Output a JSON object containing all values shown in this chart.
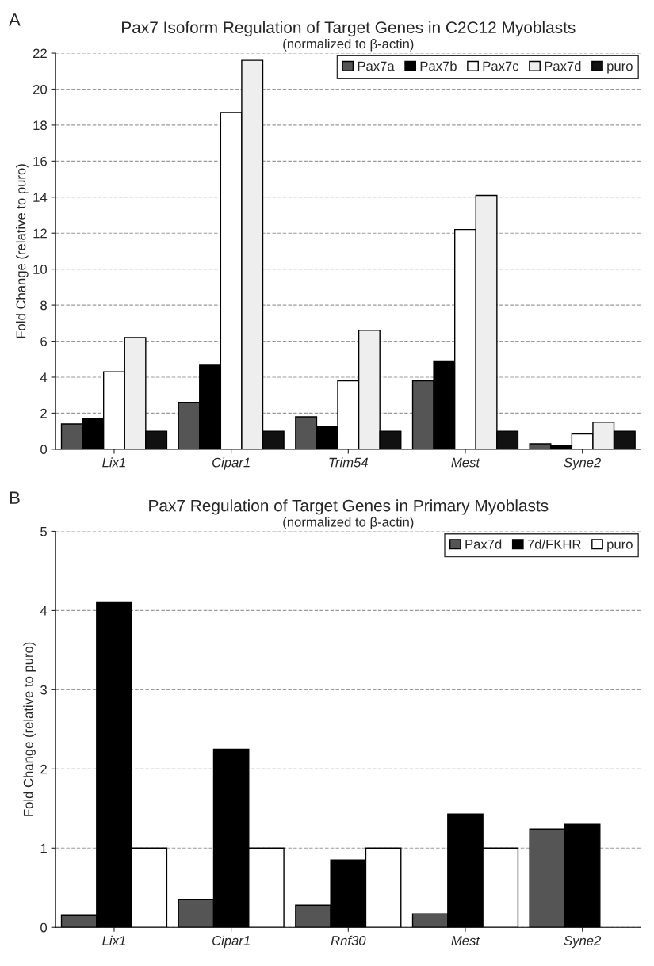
{
  "chart_data": [
    {
      "type": "bar",
      "title": "Pax7 Isoform Regulation of Target Genes in C2C12 Myoblasts",
      "subtitle": "(normalized to β-actin)",
      "ylabel": "Fold Change (relative to puro)",
      "annotations": [
        "A"
      ],
      "categories": [
        "Lix1",
        "Cipar1",
        "Trim54",
        "Mest",
        "Syne2"
      ],
      "series": [
        {
          "name": "Pax7a",
          "color": "#555555",
          "values": [
            1.4,
            2.6,
            1.8,
            3.8,
            0.3
          ]
        },
        {
          "name": "Pax7b",
          "color": "#000000",
          "values": [
            1.7,
            4.7,
            1.25,
            4.9,
            0.2
          ]
        },
        {
          "name": "Pax7c",
          "color": "#ffffff",
          "values": [
            4.3,
            18.7,
            3.8,
            12.2,
            0.85
          ]
        },
        {
          "name": "Pax7d",
          "color": "#eeeeee",
          "values": [
            6.2,
            21.6,
            6.6,
            14.1,
            1.5
          ]
        },
        {
          "name": "puro",
          "color": "#111111",
          "values": [
            1.0,
            1.0,
            1.0,
            1.0,
            1.0
          ]
        }
      ],
      "ylim": [
        0,
        22
      ],
      "yticks": [
        0,
        2,
        4,
        6,
        8,
        10,
        12,
        14,
        16,
        18,
        20,
        22
      ],
      "grid": "y",
      "legend": "top right"
    },
    {
      "type": "bar",
      "title": "Pax7 Regulation of Target Genes in Primary Myoblasts",
      "subtitle": "(normalized to β-actin)",
      "ylabel": "Fold Change (relative to puro)",
      "annotations": [
        "B"
      ],
      "categories": [
        "Lix1",
        "Cipar1",
        "Rnf30",
        "Mest",
        "Syne2"
      ],
      "series": [
        {
          "name": "Pax7d",
          "color": "#555555",
          "values": [
            0.15,
            0.35,
            0.28,
            0.17,
            1.24
          ]
        },
        {
          "name": "7d/FKHR",
          "color": "#000000",
          "values": [
            4.1,
            2.25,
            0.85,
            1.43,
            1.3
          ]
        },
        {
          "name": "puro",
          "color": "#ffffff",
          "values": [
            1.0,
            1.0,
            1.0,
            1.0,
            null
          ]
        }
      ],
      "ylim": [
        0,
        5
      ],
      "yticks": [
        0,
        1,
        2,
        3,
        4,
        5
      ],
      "grid": "y",
      "legend": "top right"
    }
  ]
}
